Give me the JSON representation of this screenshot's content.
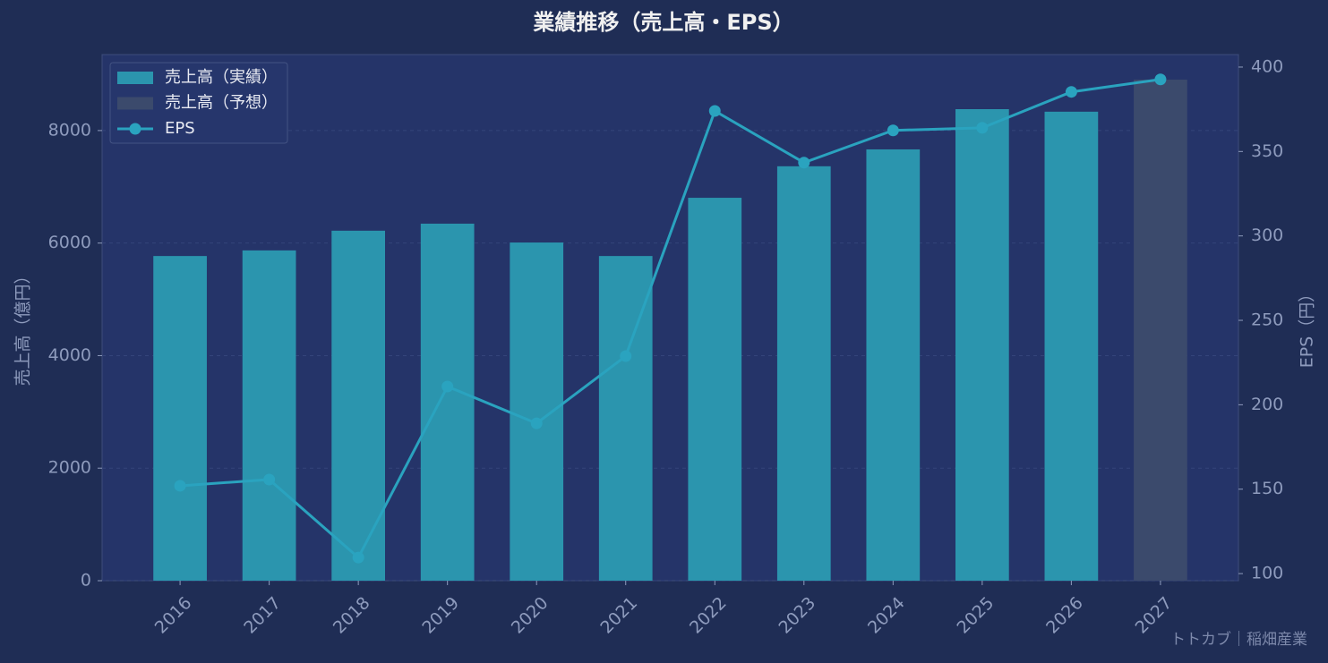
{
  "chart_data": {
    "type": "bar_line",
    "title": "業績推移（売上高・EPS）",
    "y_label": "売上高（億円）",
    "y2_label": "EPS（円）",
    "watermark": "トトカブ｜稲畑産業",
    "categories": [
      "2016",
      "2017",
      "2018",
      "2019",
      "2020",
      "2021",
      "2022",
      "2023",
      "2024",
      "2025",
      "2026",
      "2027"
    ],
    "series": [
      {
        "name": "売上高（実績）",
        "type": "bar",
        "color": "#2b95ae",
        "values": [
          5770,
          5870,
          6220,
          6345,
          6010,
          5770,
          6805,
          7365,
          7665,
          8380,
          8335,
          null
        ]
      },
      {
        "name": "売上高（予想）",
        "type": "bar",
        "color": "#3b4a6c",
        "values": [
          null,
          null,
          null,
          null,
          null,
          null,
          null,
          null,
          null,
          null,
          null,
          8905
        ]
      },
      {
        "name": "EPS",
        "type": "line",
        "axis": "y2",
        "color": "#2aa3bf",
        "values": [
          152,
          155.7,
          109.5,
          210.8,
          189,
          228.8,
          374,
          343.4,
          362.5,
          364,
          385.3,
          392.7
        ]
      }
    ],
    "ylim": [
      0,
      9350
    ],
    "yticks": [
      0,
      2000,
      4000,
      6000,
      8000
    ],
    "y2lim": [
      95.8,
      407.4
    ],
    "y2ticks": [
      100,
      150,
      200,
      250,
      300,
      350,
      400
    ],
    "grid": true,
    "legend": "upper-left"
  }
}
